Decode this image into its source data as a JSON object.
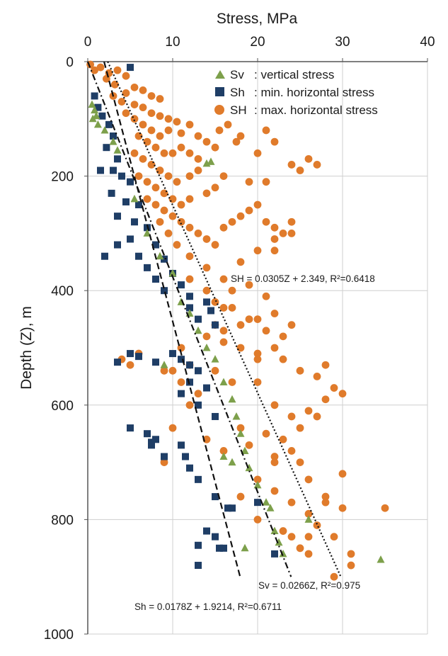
{
  "chart_data": {
    "type": "scatter",
    "title": "",
    "xlabel": "Stress, MPa",
    "ylabel": "Depth (Z), m",
    "xlim": [
      0,
      40
    ],
    "ylim": [
      0,
      1000
    ],
    "y_inverted": true,
    "x_axis_position": "top",
    "x_ticks": [
      0,
      10,
      20,
      30,
      40
    ],
    "y_ticks": [
      0,
      200,
      400,
      600,
      800,
      1000
    ],
    "x_tick_labels": [
      "0",
      "10",
      "20",
      "30",
      "40"
    ],
    "y_tick_labels": [
      "0",
      "200",
      "400",
      "600",
      "800",
      "1000"
    ],
    "grid": true,
    "legend_position": "top-right",
    "colors": {
      "sv": "#7da04b",
      "sh": "#1f3e66",
      "SH": "#e07b2b"
    },
    "series": [
      {
        "key": "sv",
        "name": "Sv",
        "description": ": vertical stress",
        "marker": "triangle",
        "points": [
          [
            0.5,
            75
          ],
          [
            0.8,
            85
          ],
          [
            1.0,
            95
          ],
          [
            1.2,
            110
          ],
          [
            0.6,
            100
          ],
          [
            2.0,
            120
          ],
          [
            3.0,
            140
          ],
          [
            3.5,
            155
          ],
          [
            14.5,
            175
          ],
          [
            14.0,
            178
          ],
          [
            5.5,
            240
          ],
          [
            7.0,
            300
          ],
          [
            8.5,
            340
          ],
          [
            10,
            370
          ],
          [
            11,
            420
          ],
          [
            12,
            440
          ],
          [
            13,
            470
          ],
          [
            14,
            500
          ],
          [
            15,
            520
          ],
          [
            16,
            560
          ],
          [
            17,
            590
          ],
          [
            17.5,
            620
          ],
          [
            18,
            650
          ],
          [
            18.5,
            680
          ],
          [
            16,
            690
          ],
          [
            17,
            700
          ],
          [
            19,
            710
          ],
          [
            20,
            740
          ],
          [
            21,
            770
          ],
          [
            21.5,
            780
          ],
          [
            22,
            820
          ],
          [
            22.5,
            840
          ],
          [
            23,
            860
          ],
          [
            18.5,
            850
          ],
          [
            26,
            800
          ],
          [
            34.5,
            870
          ],
          [
            9,
            530
          ]
        ],
        "trend_label": "Sv = 0.0266Z, R²=0.975",
        "trend": {
          "slope": 0.0266,
          "intercept": 0,
          "r2": 0.975,
          "z_range": [
            0,
            900
          ]
        }
      },
      {
        "key": "sh",
        "name": "Sh",
        "description": ":  min. horizontal stress",
        "marker": "square",
        "points": [
          [
            5,
            10
          ],
          [
            0.8,
            60
          ],
          [
            1.2,
            80
          ],
          [
            1.7,
            95
          ],
          [
            2.5,
            110
          ],
          [
            3.0,
            130
          ],
          [
            2.2,
            150
          ],
          [
            3.5,
            170
          ],
          [
            1.5,
            190
          ],
          [
            3.0,
            190
          ],
          [
            4.0,
            200
          ],
          [
            5,
            210
          ],
          [
            2.8,
            230
          ],
          [
            4.5,
            245
          ],
          [
            6.0,
            250
          ],
          [
            3.5,
            270
          ],
          [
            5.5,
            280
          ],
          [
            7.0,
            290
          ],
          [
            5.0,
            310
          ],
          [
            8.0,
            320
          ],
          [
            3.5,
            320
          ],
          [
            6.0,
            340
          ],
          [
            9.0,
            345
          ],
          [
            7.0,
            360
          ],
          [
            10,
            370
          ],
          [
            8.0,
            380
          ],
          [
            11,
            390
          ],
          [
            9,
            400
          ],
          [
            12,
            410
          ],
          [
            14,
            420
          ],
          [
            12,
            430
          ],
          [
            14.5,
            435
          ],
          [
            13,
            450
          ],
          [
            15,
            460
          ],
          [
            5,
            510
          ],
          [
            6,
            515
          ],
          [
            10,
            510
          ],
          [
            11,
            520
          ],
          [
            12,
            530
          ],
          [
            3.5,
            525
          ],
          [
            8,
            525
          ],
          [
            13,
            540
          ],
          [
            12,
            560
          ],
          [
            14,
            570
          ],
          [
            11,
            580
          ],
          [
            13,
            600
          ],
          [
            15,
            620
          ],
          [
            5,
            640
          ],
          [
            7,
            650
          ],
          [
            7.5,
            665
          ],
          [
            8,
            660
          ],
          [
            7.5,
            670
          ],
          [
            11,
            670
          ],
          [
            9,
            690
          ],
          [
            11.5,
            690
          ],
          [
            12,
            710
          ],
          [
            13,
            730
          ],
          [
            15,
            760
          ],
          [
            17,
            780
          ],
          [
            16.5,
            780
          ],
          [
            20,
            770
          ],
          [
            14,
            820
          ],
          [
            15,
            830
          ],
          [
            13,
            845
          ],
          [
            16,
            850
          ],
          [
            15.5,
            850
          ],
          [
            13,
            880
          ],
          [
            22,
            860
          ],
          [
            2,
            340
          ]
        ],
        "trend_label": "Sh = 0.0178Z + 1.9214, R²=0.6711",
        "trend": {
          "slope": 0.0178,
          "intercept": 1.9214,
          "r2": 0.6711,
          "z_range": [
            0,
            900
          ]
        }
      },
      {
        "key": "SH",
        "name": "SH",
        "description": ": max. horizontal stress",
        "marker": "circle",
        "points": [
          [
            0.3,
            5
          ],
          [
            0.8,
            15
          ],
          [
            1.5,
            10
          ],
          [
            2.5,
            20
          ],
          [
            3.5,
            15
          ],
          [
            2.2,
            30
          ],
          [
            4.5,
            25
          ],
          [
            3.2,
            40
          ],
          [
            5.5,
            45
          ],
          [
            4.5,
            55
          ],
          [
            6.5,
            50
          ],
          [
            7.5,
            60
          ],
          [
            8.5,
            65
          ],
          [
            3.0,
            60
          ],
          [
            4.0,
            70
          ],
          [
            5.5,
            75
          ],
          [
            6.5,
            80
          ],
          [
            7.5,
            90
          ],
          [
            8.5,
            95
          ],
          [
            9.5,
            100
          ],
          [
            10.5,
            105
          ],
          [
            12,
            110
          ],
          [
            4.5,
            90
          ],
          [
            5.5,
            100
          ],
          [
            6.5,
            110
          ],
          [
            7.5,
            120
          ],
          [
            8.5,
            130
          ],
          [
            9.5,
            120
          ],
          [
            11,
            125
          ],
          [
            13,
            130
          ],
          [
            14,
            140
          ],
          [
            15,
            150
          ],
          [
            6.0,
            130
          ],
          [
            7.0,
            140
          ],
          [
            8.0,
            150
          ],
          [
            9.0,
            160
          ],
          [
            10,
            160
          ],
          [
            11,
            150
          ],
          [
            5.5,
            160
          ],
          [
            6.5,
            170
          ],
          [
            7.5,
            180
          ],
          [
            8.5,
            190
          ],
          [
            9.5,
            200
          ],
          [
            10.5,
            210
          ],
          [
            12,
            200
          ],
          [
            13,
            190
          ],
          [
            6.0,
            200
          ],
          [
            7.0,
            210
          ],
          [
            8.0,
            220
          ],
          [
            9.0,
            230
          ],
          [
            10,
            240
          ],
          [
            11,
            250
          ],
          [
            12,
            240
          ],
          [
            14,
            230
          ],
          [
            15,
            220
          ],
          [
            16,
            200
          ],
          [
            7.0,
            240
          ],
          [
            8.0,
            250
          ],
          [
            9.0,
            260
          ],
          [
            10,
            270
          ],
          [
            11,
            280
          ],
          [
            12,
            290
          ],
          [
            13,
            300
          ],
          [
            14,
            310
          ],
          [
            15,
            320
          ],
          [
            16,
            290
          ],
          [
            17,
            280
          ],
          [
            18,
            270
          ],
          [
            19,
            260
          ],
          [
            20,
            250
          ],
          [
            8.5,
            280
          ],
          [
            9.5,
            300
          ],
          [
            10.5,
            320
          ],
          [
            12,
            340
          ],
          [
            14,
            360
          ],
          [
            16,
            380
          ],
          [
            18,
            350
          ],
          [
            20,
            330
          ],
          [
            22,
            310
          ],
          [
            24,
            300
          ],
          [
            12,
            380
          ],
          [
            14,
            400
          ],
          [
            15,
            420
          ],
          [
            17,
            430
          ],
          [
            19,
            450
          ],
          [
            22,
            440
          ],
          [
            24,
            460
          ],
          [
            14,
            480
          ],
          [
            16,
            490
          ],
          [
            18,
            500
          ],
          [
            20,
            510
          ],
          [
            23,
            520
          ],
          [
            25,
            540
          ],
          [
            27,
            550
          ],
          [
            29,
            570
          ],
          [
            20,
            560
          ],
          [
            22,
            600
          ],
          [
            24,
            620
          ],
          [
            26,
            610
          ],
          [
            28,
            590
          ],
          [
            30,
            580
          ],
          [
            18,
            640
          ],
          [
            21,
            650
          ],
          [
            19,
            670
          ],
          [
            22,
            690
          ],
          [
            25,
            700
          ],
          [
            26,
            730
          ],
          [
            28,
            760
          ],
          [
            30,
            780
          ],
          [
            27,
            810
          ],
          [
            29,
            830
          ],
          [
            31,
            860
          ],
          [
            35,
            780
          ],
          [
            30,
            720
          ],
          [
            24,
            830
          ],
          [
            25,
            850
          ],
          [
            12,
            530
          ],
          [
            15,
            540
          ],
          [
            17,
            560
          ],
          [
            11,
            500
          ],
          [
            9,
            540
          ],
          [
            10,
            640
          ],
          [
            9,
            700
          ],
          [
            14,
            660
          ],
          [
            16,
            680
          ],
          [
            4,
            520
          ],
          [
            5,
            530
          ],
          [
            6,
            510
          ],
          [
            22,
            140
          ],
          [
            21,
            120
          ],
          [
            20,
            160
          ],
          [
            25,
            190
          ],
          [
            24,
            180
          ],
          [
            26,
            170
          ],
          [
            27,
            180
          ],
          [
            15.5,
            120
          ],
          [
            16.5,
            110
          ],
          [
            17.5,
            140
          ],
          [
            18,
            130
          ],
          [
            13,
            170
          ],
          [
            12,
            160
          ],
          [
            19,
            210
          ],
          [
            21,
            210
          ],
          [
            22,
            290
          ],
          [
            21,
            280
          ],
          [
            23,
            300
          ],
          [
            24,
            280
          ],
          [
            22,
            330
          ],
          [
            17,
            400
          ],
          [
            19,
            390
          ],
          [
            21,
            410
          ],
          [
            16,
            430
          ],
          [
            15,
            460
          ],
          [
            16,
            470
          ],
          [
            18,
            460
          ],
          [
            20,
            450
          ],
          [
            21,
            470
          ],
          [
            23,
            480
          ],
          [
            22,
            500
          ],
          [
            20,
            520
          ],
          [
            28,
            530
          ],
          [
            27,
            620
          ],
          [
            25,
            640
          ],
          [
            23,
            660
          ],
          [
            24,
            680
          ],
          [
            22,
            700
          ],
          [
            20,
            730
          ],
          [
            18,
            760
          ],
          [
            20,
            800
          ],
          [
            23,
            820
          ],
          [
            26,
            790
          ],
          [
            28,
            770
          ],
          [
            26,
            860
          ],
          [
            31,
            880
          ],
          [
            29,
            900
          ],
          [
            26,
            830
          ],
          [
            24,
            770
          ],
          [
            22,
            750
          ],
          [
            10,
            540
          ],
          [
            11,
            560
          ],
          [
            13,
            580
          ],
          [
            12,
            600
          ]
        ],
        "trend_label": "SH = 0.0305Z + 2.349, R²=0.6418",
        "trend": {
          "slope": 0.0305,
          "intercept": 2.349,
          "r2": 0.6418,
          "z_range": [
            0,
            900
          ]
        }
      }
    ]
  }
}
